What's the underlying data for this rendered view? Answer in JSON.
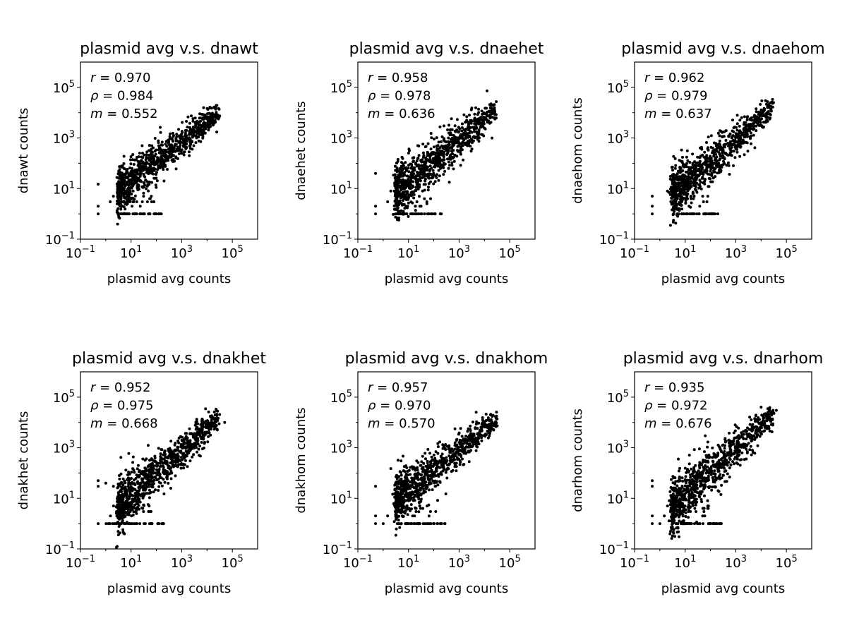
{
  "figure": {
    "type": "scatter-grid",
    "rows": 2,
    "cols": 3
  },
  "chart_data": [
    {
      "type": "scatter",
      "title": "plasmid avg v.s. dnawt",
      "xlabel": "plasmid avg counts",
      "ylabel": "dnawt counts",
      "xscale": "log",
      "yscale": "log",
      "xlim": [
        0.1,
        1000000
      ],
      "ylim": [
        0.1,
        1000000
      ],
      "xticks": [
        "10^-1",
        "10^1",
        "10^3",
        "10^5"
      ],
      "yticks": [
        "10^-1",
        "10^1",
        "10^3",
        "10^5"
      ],
      "stats": {
        "r": "0.970",
        "rho": "0.984",
        "m": "0.552"
      },
      "marker_color": "#000000",
      "trend": {
        "x": [
          3,
          30000
        ],
        "y": [
          8,
          10000
        ]
      },
      "scatter_spread_log10": 0.22,
      "floor_points_x_range": [
        3,
        200
      ],
      "floor_y": 1,
      "outliers": [
        [
          0.5,
          2
        ],
        [
          0.5,
          1
        ],
        [
          0.5,
          15
        ],
        [
          1.5,
          3
        ],
        [
          2,
          5
        ],
        [
          3,
          8
        ],
        [
          200,
          20
        ],
        [
          600,
          60
        ],
        [
          2000,
          200
        ],
        [
          3000,
          500
        ]
      ]
    },
    {
      "type": "scatter",
      "title": "plasmid avg v.s. dnaehet",
      "xlabel": "plasmid avg counts",
      "ylabel": "dnaehet counts",
      "xscale": "log",
      "yscale": "log",
      "xlim": [
        0.1,
        1000000
      ],
      "ylim": [
        0.1,
        1000000
      ],
      "xticks": [
        "10^-1",
        "10^1",
        "10^3",
        "10^5"
      ],
      "yticks": [
        "10^-1",
        "10^1",
        "10^3",
        "10^5"
      ],
      "stats": {
        "r": "0.958",
        "rho": "0.978",
        "m": "0.636"
      },
      "marker_color": "#000000",
      "trend": {
        "x": [
          3,
          30000
        ],
        "y": [
          6,
          15000
        ]
      },
      "scatter_spread_log10": 0.25,
      "floor_points_x_range": [
        3,
        200
      ],
      "floor_y": 1,
      "outliers": [
        [
          0.5,
          2
        ],
        [
          0.5,
          1
        ],
        [
          0.5,
          40
        ],
        [
          1.5,
          3
        ],
        [
          2,
          8
        ],
        [
          3000,
          300
        ],
        [
          20000,
          1000
        ],
        [
          2000,
          5000
        ],
        [
          600,
          60
        ]
      ]
    },
    {
      "type": "scatter",
      "title": "plasmid avg v.s. dnaehom",
      "xlabel": "plasmid avg counts",
      "ylabel": "dnaehom counts",
      "xscale": "log",
      "yscale": "log",
      "xlim": [
        0.1,
        1000000
      ],
      "ylim": [
        0.1,
        1000000
      ],
      "xticks": [
        "10^-1",
        "10^1",
        "10^3",
        "10^5"
      ],
      "yticks": [
        "10^-1",
        "10^1",
        "10^3",
        "10^5"
      ],
      "stats": {
        "r": "0.962",
        "rho": "0.979",
        "m": "0.637"
      },
      "marker_color": "#000000",
      "trend": {
        "x": [
          3,
          30000
        ],
        "y": [
          6,
          15000
        ]
      },
      "scatter_spread_log10": 0.23,
      "floor_points_x_range": [
        3,
        200
      ],
      "floor_y": 1,
      "outliers": [
        [
          0.5,
          2
        ],
        [
          0.5,
          1
        ],
        [
          0.5,
          5
        ],
        [
          2,
          8
        ],
        [
          15000,
          30000
        ],
        [
          3000,
          300
        ],
        [
          800,
          80
        ]
      ]
    },
    {
      "type": "scatter",
      "title": "plasmid avg v.s. dnakhet",
      "xlabel": "plasmid avg counts",
      "ylabel": "dnakhet counts",
      "xscale": "log",
      "yscale": "log",
      "xlim": [
        0.1,
        1000000
      ],
      "ylim": [
        0.1,
        1000000
      ],
      "xticks": [
        "10^-1",
        "10^1",
        "10^3",
        "10^5"
      ],
      "yticks": [
        "10^-1",
        "10^1",
        "10^3",
        "10^5"
      ],
      "stats": {
        "r": "0.952",
        "rho": "0.975",
        "m": "0.668"
      },
      "marker_color": "#000000",
      "trend": {
        "x": [
          3,
          30000
        ],
        "y": [
          5,
          15000
        ]
      },
      "scatter_spread_log10": 0.24,
      "floor_points_x_range": [
        1,
        200
      ],
      "floor_y": 1,
      "outliers": [
        [
          0.5,
          1
        ],
        [
          0.5,
          50
        ],
        [
          0.5,
          30
        ],
        [
          1,
          40
        ],
        [
          2,
          30
        ],
        [
          3,
          5
        ],
        [
          50000,
          10000
        ],
        [
          200,
          15
        ]
      ]
    },
    {
      "type": "scatter",
      "title": "plasmid avg v.s. dnakhom",
      "xlabel": "plasmid avg counts",
      "ylabel": "dnakhom counts",
      "xscale": "log",
      "yscale": "log",
      "xlim": [
        0.1,
        1000000
      ],
      "ylim": [
        0.1,
        1000000
      ],
      "xticks": [
        "10^-1",
        "10^1",
        "10^3",
        "10^5"
      ],
      "yticks": [
        "10^-1",
        "10^1",
        "10^3",
        "10^5"
      ],
      "stats": {
        "r": "0.957",
        "rho": "0.970",
        "m": "0.570"
      },
      "marker_color": "#000000",
      "trend": {
        "x": [
          3,
          30000
        ],
        "y": [
          8,
          12000
        ]
      },
      "scatter_spread_log10": 0.22,
      "floor_points_x_range": [
        3,
        300
      ],
      "floor_y": 1,
      "outliers": [
        [
          0.5,
          1
        ],
        [
          0.5,
          2
        ],
        [
          0.5,
          30
        ],
        [
          1,
          1
        ],
        [
          1.5,
          2
        ],
        [
          2,
          150
        ],
        [
          3,
          5
        ],
        [
          300,
          15
        ]
      ]
    },
    {
      "type": "scatter",
      "title": "plasmid avg v.s. dnarhom",
      "xlabel": "plasmid avg counts",
      "ylabel": "dnarhom counts",
      "xscale": "log",
      "yscale": "log",
      "xlim": [
        0.1,
        1000000
      ],
      "ylim": [
        0.1,
        1000000
      ],
      "xticks": [
        "10^-1",
        "10^1",
        "10^3",
        "10^5"
      ],
      "yticks": [
        "10^-1",
        "10^1",
        "10^3",
        "10^5"
      ],
      "stats": {
        "r": "0.935",
        "rho": "0.972",
        "m": "0.676"
      },
      "marker_color": "#000000",
      "trend": {
        "x": [
          3,
          30000
        ],
        "y": [
          5,
          20000
        ]
      },
      "scatter_spread_log10": 0.27,
      "floor_points_x_range": [
        3,
        300
      ],
      "floor_y": 1,
      "outliers": [
        [
          0.5,
          1
        ],
        [
          0.5,
          2
        ],
        [
          0.5,
          30
        ],
        [
          0.5,
          50
        ],
        [
          1,
          1
        ],
        [
          1.5,
          2
        ],
        [
          2,
          5
        ],
        [
          10000,
          40000
        ],
        [
          20000,
          35000
        ],
        [
          40000,
          30000
        ],
        [
          200,
          20
        ]
      ]
    }
  ]
}
